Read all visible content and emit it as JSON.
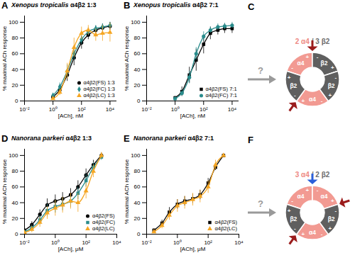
{
  "chart_data": [
    {
      "panel": "A",
      "type": "line",
      "title": "Xenopus tropicalis α4β2 1:3",
      "xlabel": "[ACh], nM",
      "ylabel": "% maximal ACh response",
      "log": "x",
      "xlim": [
        0.01,
        30000
      ],
      "xticks": [
        {
          "value": 0.01,
          "label": "10⁻²"
        },
        {
          "value": 1,
          "label": "10⁰"
        },
        {
          "value": 100,
          "label": "10²"
        },
        {
          "value": 10000,
          "label": "10⁴"
        }
      ],
      "ylim": [
        0,
        108
      ],
      "yticks": [
        0,
        20,
        40,
        60,
        80,
        100
      ],
      "legend": "bottom-right",
      "x": [
        1,
        3,
        10,
        30,
        100,
        300,
        1000,
        3000,
        10000
      ],
      "series": [
        {
          "name": "α4β2(FS) 1:3",
          "color": "#000000",
          "marker": "circle",
          "values": [
            5,
            14,
            33,
            55,
            74,
            84,
            90,
            93,
            95
          ],
          "errors": [
            3,
            5,
            8,
            10,
            8,
            6,
            5,
            5,
            5
          ]
        },
        {
          "name": "α4β2(FC) 1:3",
          "color": "#2a8c8c",
          "marker": "diamond",
          "values": [
            7,
            18,
            38,
            60,
            78,
            88,
            92,
            94,
            96
          ],
          "errors": [
            3,
            5,
            8,
            8,
            6,
            5,
            4,
            4,
            4
          ]
        },
        {
          "name": "α4β2(LC) 1:3",
          "color": "#f5a623",
          "marker": "triangle",
          "values": [
            3,
            11,
            38,
            68,
            86,
            90,
            84,
            86,
            87
          ],
          "errors": [
            2,
            4,
            10,
            12,
            8,
            6,
            8,
            10,
            12
          ]
        }
      ]
    },
    {
      "panel": "B",
      "type": "line",
      "title": "Xenopus tropicalis α4β2 7:1",
      "xlabel": "[ACh], nM",
      "ylabel": "% maximal ACh response",
      "log": "x",
      "xlim": [
        0.01,
        30000
      ],
      "xticks": [
        {
          "value": 0.01,
          "label": "10⁻²"
        },
        {
          "value": 1,
          "label": "10⁰"
        },
        {
          "value": 100,
          "label": "10²"
        },
        {
          "value": 10000,
          "label": "10⁴"
        }
      ],
      "ylim": [
        0,
        108
      ],
      "yticks": [
        0,
        20,
        40,
        60,
        80,
        100
      ],
      "legend": "bottom-right",
      "x": [
        1,
        3,
        10,
        30,
        100,
        300,
        1000,
        3000,
        10000
      ],
      "series": [
        {
          "name": "α4β2(FS) 7:1",
          "color": "#000000",
          "marker": "square",
          "values": [
            4,
            12,
            33,
            52,
            72,
            86,
            90,
            92,
            92
          ],
          "errors": [
            2,
            6,
            10,
            14,
            12,
            8,
            6,
            6,
            6
          ]
        },
        {
          "name": "α4β2(FC) 7:1",
          "color": "#2a8c8c",
          "marker": "circle",
          "values": [
            3,
            10,
            30,
            60,
            82,
            90,
            94,
            95,
            96
          ],
          "errors": [
            2,
            4,
            8,
            8,
            6,
            4,
            4,
            4,
            4
          ]
        }
      ]
    },
    {
      "panel": "D",
      "type": "line",
      "title": "Nanorana parkeri α4β2 1:3",
      "xlabel": "[ACh], μM",
      "ylabel": "% maximal ACh response",
      "log": "x",
      "xlim": [
        0.01,
        10000
      ],
      "xticks": [
        {
          "value": 0.01,
          "label": "10⁻²"
        },
        {
          "value": 1,
          "label": "10⁰"
        },
        {
          "value": 100,
          "label": "10²"
        },
        {
          "value": 10000,
          "label": "10⁴"
        }
      ],
      "ylim": [
        0,
        108
      ],
      "yticks": [
        0,
        20,
        40,
        60,
        80,
        100
      ],
      "legend": "bottom-right",
      "x": [
        0.01,
        0.03,
        0.1,
        0.3,
        1,
        3,
        10,
        30,
        100,
        300,
        1000
      ],
      "series": [
        {
          "name": "α4β2(FS)",
          "color": "#000000",
          "marker": "circle",
          "values": [
            5,
            12,
            25,
            37,
            42,
            45,
            50,
            60,
            75,
            88,
            100
          ],
          "errors": [
            3,
            4,
            6,
            8,
            8,
            8,
            8,
            8,
            8,
            6,
            3
          ]
        },
        {
          "name": "α4β2(FC)",
          "color": "#2a8c8c",
          "marker": "square",
          "values": [
            3,
            8,
            18,
            30,
            35,
            38,
            42,
            52,
            68,
            85,
            98
          ],
          "errors": [
            2,
            4,
            6,
            8,
            8,
            8,
            8,
            8,
            8,
            6,
            4
          ]
        },
        {
          "name": "α4β2(LC)",
          "color": "#f5a623",
          "marker": "triangle",
          "values": [
            2,
            6,
            15,
            27,
            33,
            37,
            42,
            40,
            55,
            80,
            100
          ],
          "errors": [
            2,
            4,
            6,
            8,
            10,
            10,
            10,
            12,
            10,
            8,
            4
          ]
        }
      ]
    },
    {
      "panel": "E",
      "type": "line",
      "title": "Nanorana parkeri α4β2 7:1",
      "xlabel": "[ACh], μM",
      "ylabel": "% maximal ACh response",
      "log": "x",
      "xlim": [
        0.01,
        10000
      ],
      "xticks": [
        {
          "value": 0.01,
          "label": "10⁻²"
        },
        {
          "value": 1,
          "label": "10⁰"
        },
        {
          "value": 100,
          "label": "10²"
        },
        {
          "value": 10000,
          "label": "10⁴"
        }
      ],
      "ylim": [
        0,
        108
      ],
      "yticks": [
        0,
        20,
        40,
        60,
        80,
        100
      ],
      "legend": "bottom-right",
      "x": [
        0.03,
        0.1,
        0.3,
        1,
        3,
        10,
        30,
        100,
        300,
        1000
      ],
      "series": [
        {
          "name": "α4β2(FS)",
          "color": "#000000",
          "marker": "square",
          "values": [
            5,
            14,
            28,
            38,
            42,
            45,
            50,
            65,
            85,
            100
          ],
          "errors": [
            2,
            4,
            6,
            6,
            6,
            6,
            6,
            6,
            4,
            2
          ]
        },
        {
          "name": "α4β2(LC)",
          "color": "#f5a623",
          "marker": "triangle",
          "values": [
            3,
            11,
            24,
            36,
            40,
            44,
            48,
            60,
            88,
            100
          ],
          "errors": [
            2,
            4,
            6,
            8,
            8,
            8,
            8,
            8,
            6,
            2
          ]
        }
      ]
    }
  ],
  "diagrams": [
    {
      "panel": "C",
      "question": "?",
      "title": [
        {
          "text": "2 α4",
          "color": "#ee8a84"
        },
        {
          "text": "/ 3 β2",
          "color": "#6e6e6e"
        }
      ],
      "subunit_colors": {
        "α4": "#f29a92",
        "β2": "#5f5f5f"
      },
      "subunits": [
        "α4",
        "β2",
        "β2",
        "α4",
        "β2"
      ],
      "signs": {
        "minus": "-",
        "plus": "+"
      }
    },
    {
      "panel": "F",
      "question": "?",
      "title": [
        {
          "text": "3 α4",
          "color": "#ee8a84"
        },
        {
          "text": "/ 2 β2",
          "color": "#6e6e6e"
        }
      ],
      "subunit_colors": {
        "α4": "#f29a92",
        "β2": "#5f5f5f"
      },
      "subunits": [
        "α4",
        "α4",
        "β2",
        "α4",
        "β2"
      ],
      "signs": {
        "minus": "-",
        "plus": "+"
      }
    }
  ]
}
